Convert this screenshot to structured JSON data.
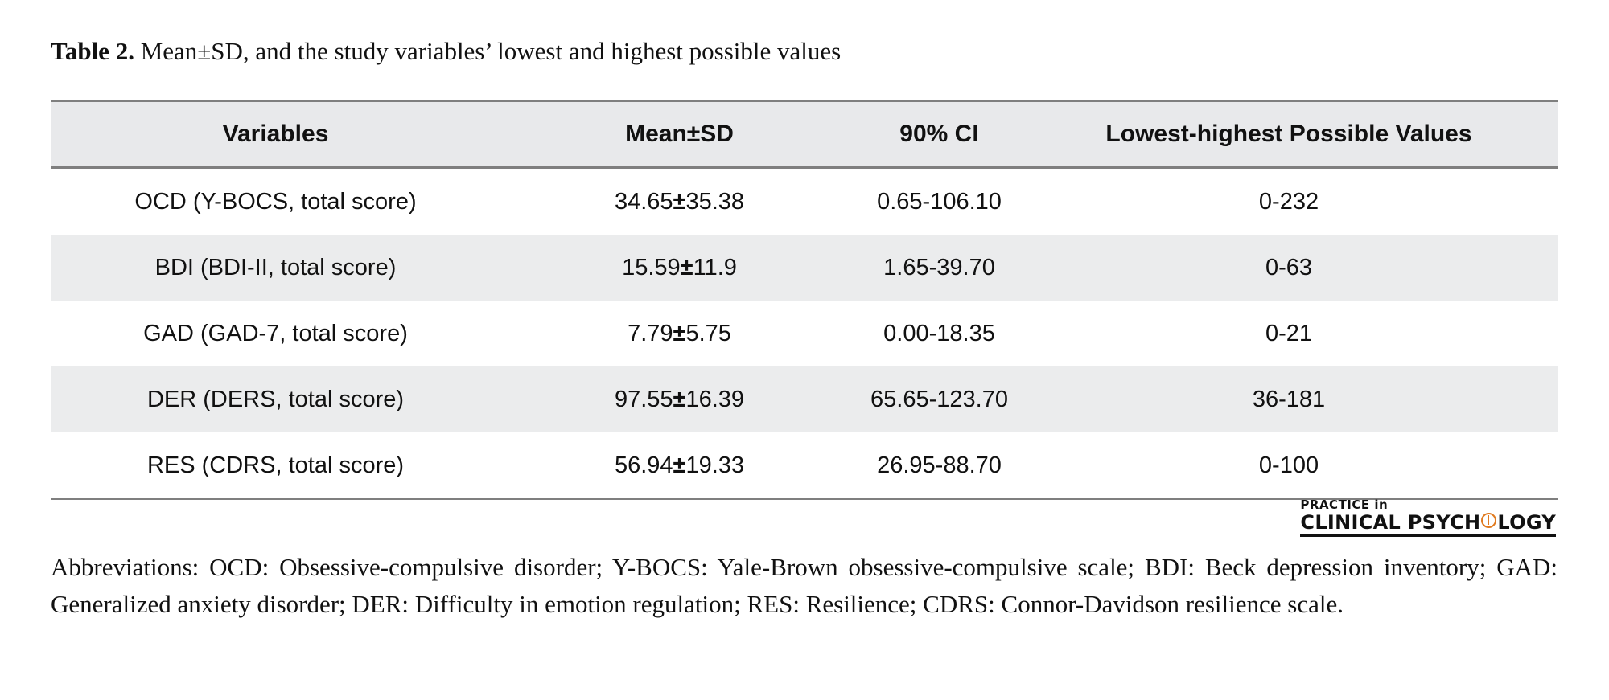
{
  "caption": {
    "label": "Table 2.",
    "text": "Mean±SD, and the study variables’ lowest and highest possible values"
  },
  "table": {
    "headers": [
      "Variables",
      "Mean±SD",
      "90% CI",
      "Lowest-highest Possible Values"
    ],
    "rows": [
      {
        "variable": "OCD (Y-BOCS, total score)",
        "mean": "34.65",
        "sd": "35.38",
        "ci": "0.65-106.10",
        "range": "0-232"
      },
      {
        "variable": "BDI (BDI-II, total score)",
        "mean": "15.59",
        "sd": "11.9",
        "ci": "1.65-39.70",
        "range": "0-63"
      },
      {
        "variable": "GAD (GAD-7, total score)",
        "mean": "7.79",
        "sd": "5.75",
        "ci": "0.00-18.35",
        "range": "0-21"
      },
      {
        "variable": "DER (DERS, total score)",
        "mean": "97.55",
        "sd": "16.39",
        "ci": "65.65-123.70",
        "range": "36-181"
      },
      {
        "variable": "RES (CDRS, total score)",
        "mean": "56.94",
        "sd": "19.33",
        "ci": "26.95-88.70",
        "range": "0-100"
      }
    ],
    "pm_symbol": "±"
  },
  "logo": {
    "top": "PRACTICE in",
    "main_left": "CLINICAL PSYCH",
    "main_right": "LOGY"
  },
  "footnote": "Abbreviations: OCD: Obsessive-compulsive disorder; Y-BOCS: Yale-Brown obsessive-compulsive scale; BDI: Beck depression inventory; GAD: Generalized anxiety disorder; DER: Difficulty in emotion regulation; RES: Resilience; CDRS: Connor-Davidson resilience scale.",
  "colors": {
    "header_bg": "#e8e9eb",
    "shaded_row_bg": "#ebeced",
    "rule": "#7f7f7f",
    "logo_accent": "#e07a1f"
  }
}
